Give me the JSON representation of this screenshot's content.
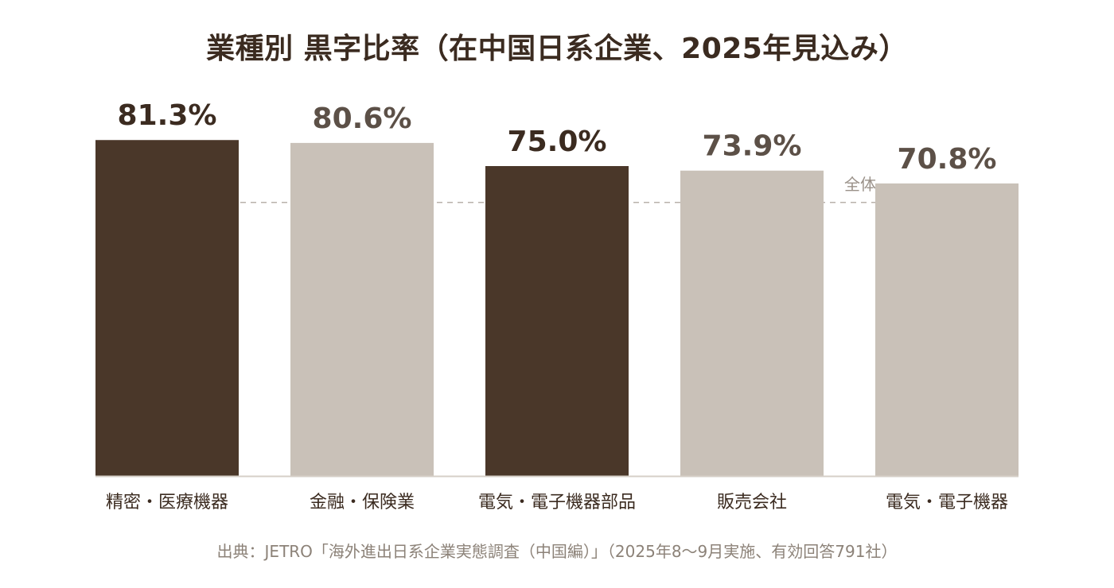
{
  "chart_data": {
    "type": "bar",
    "title": "業種別 黒字比率（在中国日系企業、2025年見込み）",
    "categories": [
      "精密・医療機器",
      "金融・保険業",
      "電気・電子機器部品",
      "販売会社",
      "電気・電子機器"
    ],
    "values": [
      81.3,
      80.6,
      75.0,
      73.9,
      70.8
    ],
    "value_labels": [
      "81.3%",
      "80.6%",
      "75.0%",
      "73.9%",
      "70.8%"
    ],
    "bar_colors": [
      "#4a3729",
      "#c9c1b8",
      "#4a3729",
      "#c9c1b8",
      "#c9c1b8"
    ],
    "label_colors": [
      "#3b2b20",
      "#5c5047",
      "#3b2b20",
      "#5c5047",
      "#5c5047"
    ],
    "reference_line": {
      "label": "全体",
      "value": 66.2,
      "style": "dashed",
      "color": "#b8b2ab"
    },
    "ylim": [
      0,
      100
    ],
    "xlabel": "",
    "ylabel": "",
    "grid": false,
    "legend": "none"
  },
  "source": "出典：JETRO「海外進出日系企業実態調査（中国編）」（2025年8〜9月実施、有効回答791社）"
}
